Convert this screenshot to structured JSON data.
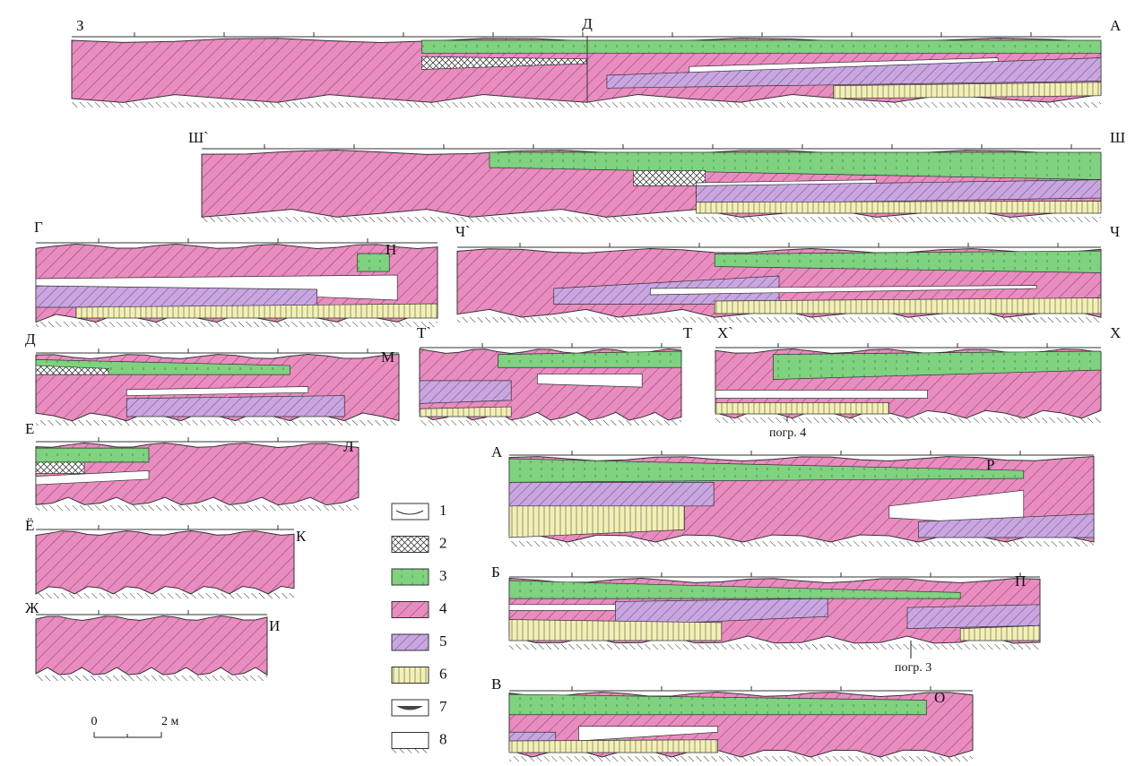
{
  "sections": [
    {
      "left": "З",
      "right": "А",
      "marker": "Д"
    },
    {
      "left": "Ш`",
      "right": "Ш"
    },
    {
      "left": "Г",
      "right": "Н"
    },
    {
      "left": "Ч`",
      "right": "Ч"
    },
    {
      "left": "Д",
      "right": "М"
    },
    {
      "left": "Т`",
      "right": "Т"
    },
    {
      "left": "Х`",
      "right": "Х"
    },
    {
      "left": "Е",
      "right": "Л"
    },
    {
      "left": "Ё",
      "right": "К"
    },
    {
      "left": "Ж",
      "right": "И"
    },
    {
      "left": "А",
      "right": "Р"
    },
    {
      "left": "Б",
      "right": "П"
    },
    {
      "left": "В",
      "right": "О"
    }
  ],
  "annotations": [
    "погр. 4",
    "погр. 3"
  ],
  "legend": [
    "1",
    "2",
    "3",
    "4",
    "5",
    "6",
    "7",
    "8"
  ],
  "scale": {
    "start": "0",
    "end": "2 м"
  }
}
